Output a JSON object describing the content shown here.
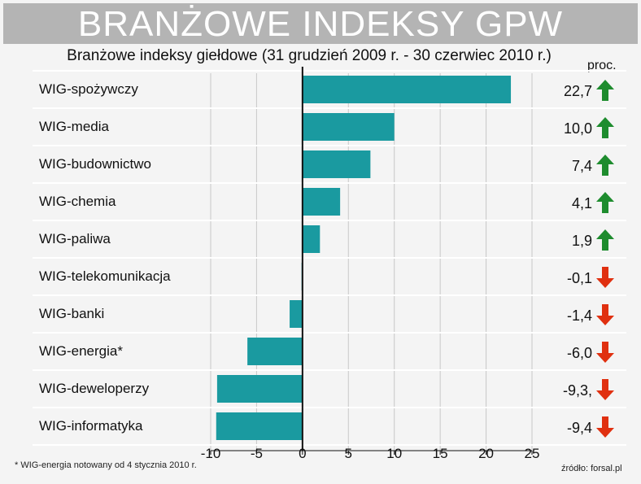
{
  "header": {
    "title": "BRANŻOWE INDEKSY GPW"
  },
  "footnote": "* WIG-energia notowany od 4 stycznia 2010 r.",
  "source": "źródło: forsal.pl",
  "colors": {
    "bar": "#1a9aa0",
    "up": "#1e8c2e",
    "down": "#e03010",
    "title_bg": "#b4b4b4"
  },
  "chart_data": {
    "type": "bar",
    "orientation": "horizontal",
    "title": "Branżowe indeksy giełdowe (31 grudzień 2009 r. - 30 czerwiec 2010 r.)",
    "unit": "proc.",
    "categories": [
      "WIG-spożywczy",
      "WIG-media",
      "WIG-budownictwo",
      "WIG-chemia",
      "WIG-paliwa",
      "WIG-telekomunikacja",
      "WIG-banki",
      "WIG-energia*",
      "WIG-deweloperzy",
      "WIG-informatyka"
    ],
    "values": [
      22.7,
      10.0,
      7.4,
      4.1,
      1.9,
      -0.1,
      -1.4,
      -6.0,
      -9.3,
      -9.4
    ],
    "value_labels": [
      "22,7",
      "10,0",
      "7,4",
      "4,1",
      "1,9",
      "-0,1",
      "-1,4",
      "-6,0",
      "-9,3,",
      "-9,4"
    ],
    "direction_icons": [
      "up-arrow-icon",
      "up-arrow-icon",
      "up-arrow-icon",
      "up-arrow-icon",
      "up-arrow-icon",
      "down-arrow-icon",
      "down-arrow-icon",
      "down-arrow-icon",
      "down-arrow-icon",
      "down-arrow-icon"
    ],
    "xlim": [
      -10,
      25
    ],
    "xticks": [
      -10,
      -5,
      0,
      5,
      10,
      15,
      20,
      25
    ],
    "grid": true
  }
}
